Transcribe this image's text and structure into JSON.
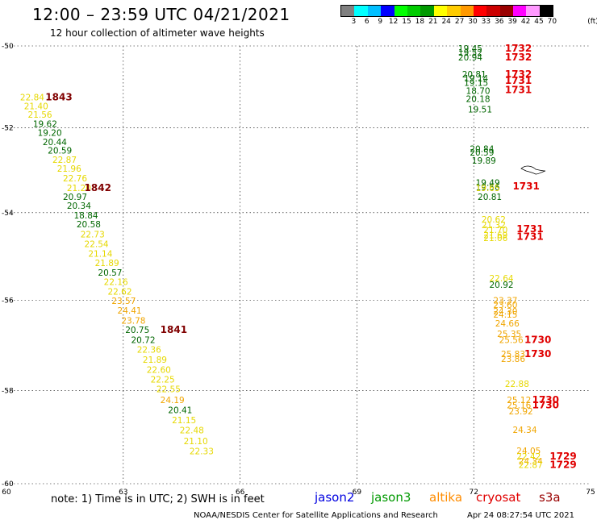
{
  "title": "12:00 – 23:59 UTC 04/21/2021",
  "subtitle": "12 hour collection of altimeter wave heights",
  "colorbar": {
    "colors": [
      "#808080",
      "#00ffff",
      "#00bfff",
      "#0000ff",
      "#00ff00",
      "#00cc00",
      "#009900",
      "#ffff00",
      "#ffcc00",
      "#ff9900",
      "#ff0000",
      "#cc0000",
      "#990000",
      "#ff00ff",
      "#ff99ff",
      "#000000"
    ],
    "labels": [
      "3",
      "6",
      "9",
      "12",
      "15",
      "18",
      "21",
      "24",
      "27",
      "30",
      "33",
      "36",
      "39",
      "42",
      "45",
      "70"
    ],
    "unit": "(ft)"
  },
  "map": {
    "lon_range": [
      60,
      75
    ],
    "lat_range": [
      -60.2,
      -49.8
    ],
    "lat_ticks": [
      "-50",
      "-52",
      "-54",
      "-56",
      "-58",
      "-60"
    ],
    "lon_ticks": [
      "60",
      "63",
      "66",
      "69",
      "72",
      "75"
    ]
  },
  "colors": {
    "green": "#006600",
    "yellow": "#e6d800",
    "orange": "#f0a500",
    "red": "#e00000",
    "darkred": "#800000"
  },
  "track_west": [
    {
      "text": "22.84",
      "lon": 60.35,
      "lat": -51.26,
      "c": "yellow"
    },
    {
      "text": "21.40",
      "lon": 60.45,
      "lat": -51.47,
      "c": "yellow"
    },
    {
      "text": "21.56",
      "lon": 60.55,
      "lat": -51.68,
      "c": "yellow"
    },
    {
      "text": "19.62",
      "lon": 60.68,
      "lat": -51.9,
      "c": "green"
    },
    {
      "text": "19.20",
      "lon": 60.8,
      "lat": -52.11,
      "c": "green"
    },
    {
      "text": "20.44",
      "lon": 60.93,
      "lat": -52.33,
      "c": "green"
    },
    {
      "text": "20.59",
      "lon": 61.06,
      "lat": -52.54,
      "c": "green"
    },
    {
      "text": "22.87",
      "lon": 61.18,
      "lat": -52.76,
      "c": "yellow"
    },
    {
      "text": "21.96",
      "lon": 61.3,
      "lat": -52.97,
      "c": "yellow"
    },
    {
      "text": "22.76",
      "lon": 61.45,
      "lat": -53.19,
      "c": "yellow"
    },
    {
      "text": "21.20",
      "lon": 61.55,
      "lat": -53.42,
      "c": "yellow"
    },
    {
      "text": "20.97",
      "lon": 61.45,
      "lat": -53.63,
      "c": "green"
    },
    {
      "text": "20.34",
      "lon": 61.55,
      "lat": -53.84,
      "c": "green"
    },
    {
      "text": "18.84",
      "lon": 61.73,
      "lat": -54.06,
      "c": "green"
    },
    {
      "text": "20.58",
      "lon": 61.8,
      "lat": -54.27,
      "c": "green"
    },
    {
      "text": "22.73",
      "lon": 61.9,
      "lat": -54.5,
      "c": "yellow"
    },
    {
      "text": "22.54",
      "lon": 62.0,
      "lat": -54.72,
      "c": "yellow"
    },
    {
      "text": "21.14",
      "lon": 62.1,
      "lat": -54.94,
      "c": "yellow"
    },
    {
      "text": "21.89",
      "lon": 62.27,
      "lat": -55.15,
      "c": "yellow"
    },
    {
      "text": "20.57",
      "lon": 62.35,
      "lat": -55.37,
      "c": "green"
    },
    {
      "text": "22.16",
      "lon": 62.5,
      "lat": -55.58,
      "c": "yellow"
    },
    {
      "text": "22.62",
      "lon": 62.6,
      "lat": -55.8,
      "c": "yellow"
    },
    {
      "text": "23.57",
      "lon": 62.7,
      "lat": -56.01,
      "c": "orange"
    },
    {
      "text": "24.41",
      "lon": 62.85,
      "lat": -56.23,
      "c": "orange"
    },
    {
      "text": "23.78",
      "lon": 62.95,
      "lat": -56.45,
      "c": "orange"
    },
    {
      "text": "20.75",
      "lon": 63.05,
      "lat": -56.66,
      "c": "green"
    },
    {
      "text": "20.72",
      "lon": 63.2,
      "lat": -56.88,
      "c": "green"
    },
    {
      "text": "22.36",
      "lon": 63.35,
      "lat": -57.1,
      "c": "yellow"
    },
    {
      "text": "21.89",
      "lon": 63.5,
      "lat": -57.32,
      "c": "yellow"
    },
    {
      "text": "22.60",
      "lon": 63.6,
      "lat": -57.54,
      "c": "yellow"
    },
    {
      "text": "22.25",
      "lon": 63.7,
      "lat": -57.75,
      "c": "yellow"
    },
    {
      "text": "22.55",
      "lon": 63.85,
      "lat": -57.97,
      "c": "yellow"
    },
    {
      "text": "24.19",
      "lon": 63.95,
      "lat": -58.2,
      "c": "orange"
    },
    {
      "text": "20.41",
      "lon": 64.15,
      "lat": -58.42,
      "c": "green"
    },
    {
      "text": "21.15",
      "lon": 64.25,
      "lat": -58.64,
      "c": "yellow"
    },
    {
      "text": "22.48",
      "lon": 64.45,
      "lat": -58.86,
      "c": "yellow"
    },
    {
      "text": "21.10",
      "lon": 64.55,
      "lat": -59.09,
      "c": "yellow"
    },
    {
      "text": "22.33",
      "lon": 64.7,
      "lat": -59.31,
      "c": "yellow"
    }
  ],
  "track_east": [
    {
      "text": "19.45",
      "lon": 71.6,
      "lat": -50.06,
      "c": "green"
    },
    {
      "text": "19.52",
      "lon": 71.6,
      "lat": -50.16,
      "c": "green"
    },
    {
      "text": "20.94",
      "lon": 71.6,
      "lat": -50.28,
      "c": "green"
    },
    {
      "text": "20.81",
      "lon": 71.7,
      "lat": -50.7,
      "c": "green"
    },
    {
      "text": "19.14",
      "lon": 71.75,
      "lat": -50.8,
      "c": "green"
    },
    {
      "text": "19.15",
      "lon": 71.75,
      "lat": -50.9,
      "c": "green"
    },
    {
      "text": "18.70",
      "lon": 71.8,
      "lat": -51.1,
      "c": "green"
    },
    {
      "text": "20.18",
      "lon": 71.8,
      "lat": -51.3,
      "c": "green"
    },
    {
      "text": "19.51",
      "lon": 71.85,
      "lat": -51.55,
      "c": "green"
    },
    {
      "text": "20.84",
      "lon": 71.9,
      "lat": -52.5,
      "c": "green"
    },
    {
      "text": "20.59",
      "lon": 71.9,
      "lat": -52.58,
      "c": "green"
    },
    {
      "text": "19.89",
      "lon": 71.95,
      "lat": -52.78,
      "c": "green"
    },
    {
      "text": "19.49",
      "lon": 72.05,
      "lat": -53.3,
      "c": "green"
    },
    {
      "text": "19.56",
      "lon": 72.05,
      "lat": -53.4,
      "c": "green"
    },
    {
      "text": "19.65",
      "lon": 72.05,
      "lat": -53.42,
      "c": "yellow"
    },
    {
      "text": "20.81",
      "lon": 72.1,
      "lat": -53.63,
      "c": "green"
    },
    {
      "text": "20.62",
      "lon": 72.2,
      "lat": -54.15,
      "c": "yellow"
    },
    {
      "text": "21.32",
      "lon": 72.2,
      "lat": -54.28,
      "c": "yellow"
    },
    {
      "text": "21.70",
      "lon": 72.25,
      "lat": -54.4,
      "c": "yellow"
    },
    {
      "text": "21.69",
      "lon": 72.25,
      "lat": -54.52,
      "c": "yellow"
    },
    {
      "text": "21.06",
      "lon": 72.25,
      "lat": -54.58,
      "c": "yellow"
    },
    {
      "text": "22.64",
      "lon": 72.4,
      "lat": -55.5,
      "c": "yellow"
    },
    {
      "text": "20.92",
      "lon": 72.4,
      "lat": -55.65,
      "c": "green"
    },
    {
      "text": "23.37",
      "lon": 72.5,
      "lat": -56.0,
      "c": "orange"
    },
    {
      "text": "23.60",
      "lon": 72.5,
      "lat": -56.1,
      "c": "orange"
    },
    {
      "text": "24.30",
      "lon": 72.5,
      "lat": -56.25,
      "c": "orange"
    },
    {
      "text": "24.15",
      "lon": 72.5,
      "lat": -56.32,
      "c": "orange"
    },
    {
      "text": "24.66",
      "lon": 72.55,
      "lat": -56.52,
      "c": "orange"
    },
    {
      "text": "25.35",
      "lon": 72.6,
      "lat": -56.75,
      "c": "orange"
    },
    {
      "text": "25.56",
      "lon": 72.65,
      "lat": -56.88,
      "c": "orange"
    },
    {
      "text": "25.83",
      "lon": 72.7,
      "lat": -57.2,
      "c": "orange"
    },
    {
      "text": "23.86",
      "lon": 72.7,
      "lat": -57.3,
      "c": "orange"
    },
    {
      "text": "22.88",
      "lon": 72.8,
      "lat": -57.85,
      "c": "yellow"
    },
    {
      "text": "25.12",
      "lon": 72.85,
      "lat": -58.2,
      "c": "orange"
    },
    {
      "text": "25.16",
      "lon": 72.85,
      "lat": -58.32,
      "c": "orange"
    },
    {
      "text": "23.92",
      "lon": 72.9,
      "lat": -58.45,
      "c": "orange"
    },
    {
      "text": "24.34",
      "lon": 73.0,
      "lat": -58.85,
      "c": "orange"
    },
    {
      "text": "24.05",
      "lon": 73.1,
      "lat": -59.3,
      "c": "orange"
    },
    {
      "text": "22.42",
      "lon": 73.1,
      "lat": -59.42,
      "c": "yellow"
    },
    {
      "text": "24.34",
      "lon": 73.15,
      "lat": -59.52,
      "c": "orange"
    },
    {
      "text": "22.87",
      "lon": 73.15,
      "lat": -59.6,
      "c": "yellow"
    }
  ],
  "times": [
    {
      "text": "1843",
      "lon": 61.0,
      "lat": -51.26,
      "c": "darkred"
    },
    {
      "text": "1842",
      "lon": 62.0,
      "lat": -53.42,
      "c": "darkred"
    },
    {
      "text": "1841",
      "lon": 63.95,
      "lat": -56.66,
      "c": "darkred"
    },
    {
      "text": "1732",
      "lon": 72.8,
      "lat": -50.06,
      "c": "red"
    },
    {
      "text": "1732",
      "lon": 72.8,
      "lat": -50.28,
      "c": "red"
    },
    {
      "text": "1732",
      "lon": 72.8,
      "lat": -50.7,
      "c": "red"
    },
    {
      "text": "1731",
      "lon": 72.8,
      "lat": -50.85,
      "c": "red"
    },
    {
      "text": "1731",
      "lon": 72.8,
      "lat": -51.08,
      "c": "red"
    },
    {
      "text": "1731",
      "lon": 73.0,
      "lat": -53.38,
      "c": "red"
    },
    {
      "text": "1731",
      "lon": 73.1,
      "lat": -54.38,
      "c": "red"
    },
    {
      "text": "1731",
      "lon": 73.1,
      "lat": -54.55,
      "c": "red"
    },
    {
      "text": "1730",
      "lon": 73.3,
      "lat": -56.88,
      "c": "red"
    },
    {
      "text": "1730",
      "lon": 73.3,
      "lat": -57.2,
      "c": "red"
    },
    {
      "text": "1730",
      "lon": 73.5,
      "lat": -58.2,
      "c": "red"
    },
    {
      "text": "1730",
      "lon": 73.5,
      "lat": -58.32,
      "c": "red"
    },
    {
      "text": "1729",
      "lon": 73.95,
      "lat": -59.42,
      "c": "red"
    },
    {
      "text": "1729",
      "lon": 73.95,
      "lat": -59.6,
      "c": "red"
    }
  ],
  "footer": {
    "note": "note: 1) Time is in UTC; 2) SWH is in feet",
    "satellites": [
      {
        "name": "jason2",
        "color": "#0000e0"
      },
      {
        "name": "jason3",
        "color": "#009900"
      },
      {
        "name": "altika",
        "color": "#ff8c00"
      },
      {
        "name": "cryosat",
        "color": "#e00000"
      },
      {
        "name": "s3a",
        "color": "#990000"
      }
    ],
    "credit": "NOAA/NESDIS Center for Satellite Applications and Research",
    "timestamp": "Apr 24 08:27:54 UTC 2021"
  }
}
